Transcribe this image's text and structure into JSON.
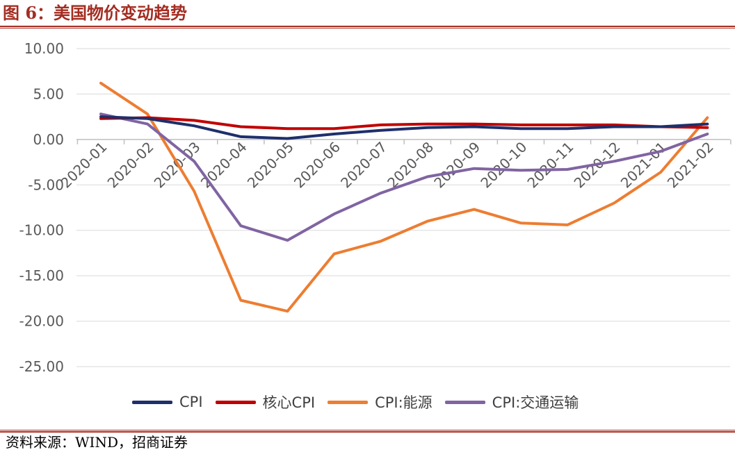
{
  "title": "图 6：美国物价变动趋势",
  "source": "资料来源：WIND，招商证券",
  "chart_data": {
    "type": "line",
    "title": "图 6：美国物价变动趋势",
    "xlabel": "",
    "ylabel": "",
    "ylim": [
      -25,
      10
    ],
    "y_ticks": [
      "10.00",
      "5.00",
      "0.00",
      "-5.00",
      "-10.00",
      "-15.00",
      "-20.00",
      "-25.00"
    ],
    "x": [
      "2020-01",
      "2020-02",
      "2020-03",
      "2020-04",
      "2020-05",
      "2020-06",
      "2020-07",
      "2020-08",
      "2020-09",
      "2020-10",
      "2020-11",
      "2020-12",
      "2021-01",
      "2021-02"
    ],
    "series": [
      {
        "name": "CPI",
        "color": "#1f2f6b",
        "values": [
          2.5,
          2.3,
          1.5,
          0.3,
          0.1,
          0.6,
          1.0,
          1.3,
          1.4,
          1.2,
          1.2,
          1.4,
          1.4,
          1.7
        ]
      },
      {
        "name": "核心CPI",
        "color": "#c00000",
        "values": [
          2.3,
          2.4,
          2.1,
          1.4,
          1.2,
          1.2,
          1.6,
          1.7,
          1.7,
          1.6,
          1.6,
          1.6,
          1.4,
          1.3
        ]
      },
      {
        "name": "CPI:能源",
        "color": "#ed7d31",
        "values": [
          6.2,
          2.8,
          -5.7,
          -17.7,
          -18.9,
          -12.6,
          -11.2,
          -9.0,
          -7.7,
          -9.2,
          -9.4,
          -7.0,
          -3.6,
          2.4
        ]
      },
      {
        "name": "CPI:交通运输",
        "color": "#8064a2",
        "values": [
          2.8,
          1.7,
          -2.4,
          -9.5,
          -11.1,
          -8.2,
          -5.9,
          -4.1,
          -3.2,
          -3.4,
          -3.3,
          -2.4,
          -1.3,
          0.6
        ]
      }
    ],
    "grid": true,
    "legend": "bottom"
  }
}
